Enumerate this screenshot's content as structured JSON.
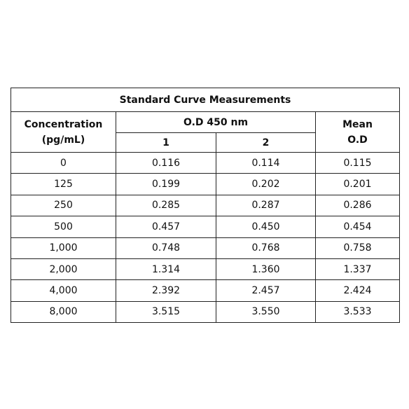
{
  "table": {
    "title": "Standard Curve Measurements",
    "headers": {
      "concentration": "Concentration\n(pg/mL)",
      "od": "O.D 450 nm",
      "rep1": "1",
      "rep2": "2",
      "mean": "Mean\nO.D"
    },
    "rows": [
      [
        "0",
        "0.116",
        "0.114",
        "0.115"
      ],
      [
        "125",
        "0.199",
        "0.202",
        "0.201"
      ],
      [
        "250",
        "0.285",
        "0.287",
        "0.286"
      ],
      [
        "500",
        "0.457",
        "0.450",
        "0.454"
      ],
      [
        "1,000",
        "0.748",
        "0.768",
        "0.758"
      ],
      [
        "2,000",
        "1.314",
        "1.360",
        "1.337"
      ],
      [
        "4,000",
        "2.392",
        "2.457",
        "2.424"
      ],
      [
        "8,000",
        "3.515",
        "3.550",
        "3.533"
      ]
    ]
  }
}
